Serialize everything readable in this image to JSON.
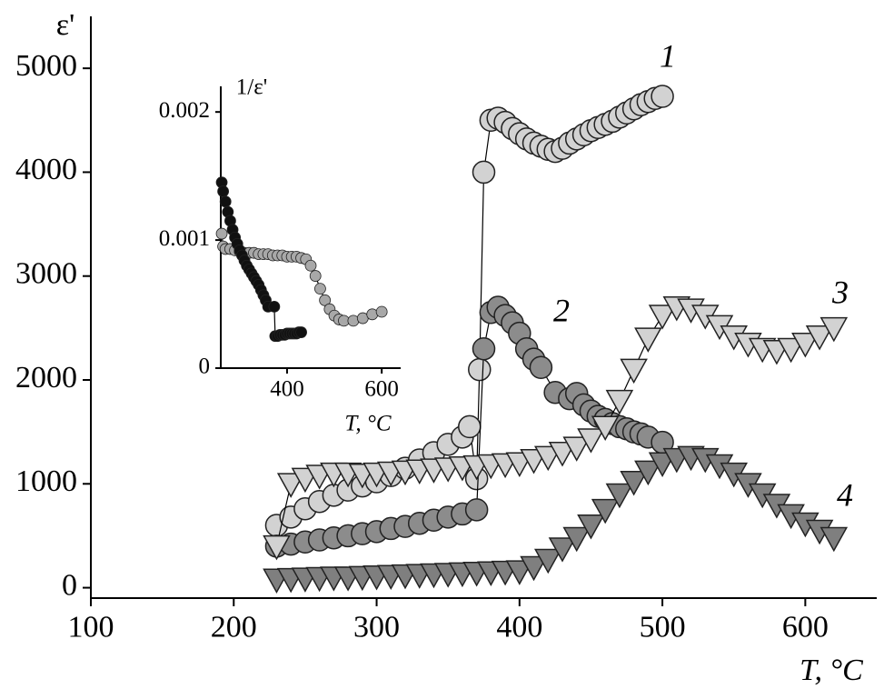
{
  "chart_data": [
    {
      "type": "scatter",
      "x_label": "T, °C",
      "y_label": "ε'",
      "xlim": [
        100,
        650
      ],
      "ylim": [
        -100,
        5500
      ],
      "xticks": [
        100,
        200,
        300,
        400,
        500,
        600
      ],
      "yticks": [
        0,
        1000,
        2000,
        3000,
        4000,
        5000
      ],
      "series": [
        {
          "name": "1",
          "marker": "circle",
          "color": "#d2d2d2",
          "x": [
            230,
            240,
            250,
            260,
            270,
            280,
            290,
            300,
            310,
            320,
            330,
            340,
            350,
            360,
            365,
            370,
            372,
            375,
            380,
            385,
            390,
            395,
            400,
            405,
            410,
            415,
            420,
            425,
            430,
            435,
            440,
            445,
            450,
            455,
            460,
            465,
            470,
            475,
            480,
            485,
            490,
            495,
            500
          ],
          "values": [
            600,
            680,
            760,
            830,
            890,
            940,
            980,
            1020,
            1080,
            1150,
            1230,
            1300,
            1380,
            1450,
            1550,
            1050,
            2100,
            4000,
            4500,
            4520,
            4480,
            4420,
            4370,
            4320,
            4280,
            4250,
            4220,
            4200,
            4230,
            4280,
            4320,
            4360,
            4400,
            4430,
            4460,
            4490,
            4530,
            4570,
            4610,
            4650,
            4680,
            4710,
            4730
          ]
        },
        {
          "name": "2",
          "marker": "circle",
          "color": "#8c8c8c",
          "x": [
            230,
            240,
            250,
            260,
            270,
            280,
            290,
            300,
            310,
            320,
            330,
            340,
            350,
            360,
            370,
            375,
            380,
            385,
            390,
            395,
            400,
            405,
            410,
            415,
            425,
            435,
            440,
            445,
            450,
            455,
            460,
            465,
            470,
            475,
            480,
            485,
            490,
            500
          ],
          "values": [
            400,
            420,
            440,
            460,
            480,
            500,
            520,
            540,
            570,
            590,
            620,
            650,
            680,
            710,
            750,
            2300,
            2650,
            2700,
            2620,
            2550,
            2450,
            2300,
            2200,
            2120,
            1880,
            1820,
            1870,
            1760,
            1700,
            1650,
            1620,
            1580,
            1550,
            1530,
            1500,
            1480,
            1450,
            1400
          ]
        },
        {
          "name": "3",
          "marker": "triangle",
          "color": "#d2d2d2",
          "x": [
            230,
            240,
            250,
            260,
            270,
            280,
            290,
            300,
            310,
            320,
            330,
            340,
            350,
            360,
            370,
            380,
            390,
            400,
            410,
            420,
            430,
            440,
            450,
            460,
            470,
            480,
            490,
            500,
            510,
            520,
            530,
            540,
            550,
            560,
            570,
            580,
            590,
            600,
            610,
            620
          ],
          "values": [
            400,
            1000,
            1050,
            1080,
            1100,
            1100,
            1090,
            1100,
            1110,
            1120,
            1130,
            1140,
            1150,
            1160,
            1170,
            1180,
            1190,
            1200,
            1230,
            1260,
            1300,
            1350,
            1430,
            1550,
            1800,
            2100,
            2400,
            2620,
            2700,
            2680,
            2620,
            2520,
            2420,
            2350,
            2300,
            2280,
            2300,
            2350,
            2420,
            2500
          ]
        },
        {
          "name": "4",
          "marker": "triangle",
          "color": "#7f7f7f",
          "x": [
            230,
            240,
            250,
            260,
            270,
            280,
            290,
            300,
            310,
            320,
            330,
            340,
            350,
            360,
            370,
            380,
            390,
            400,
            410,
            420,
            430,
            440,
            450,
            460,
            470,
            480,
            490,
            500,
            510,
            520,
            530,
            540,
            550,
            560,
            570,
            580,
            590,
            600,
            610,
            620
          ],
          "values": [
            80,
            85,
            90,
            95,
            100,
            100,
            105,
            110,
            115,
            120,
            125,
            130,
            135,
            140,
            145,
            150,
            155,
            160,
            200,
            270,
            380,
            480,
            600,
            750,
            900,
            1020,
            1120,
            1200,
            1240,
            1260,
            1240,
            1180,
            1100,
            1000,
            900,
            800,
            700,
            620,
            550,
            480
          ]
        }
      ]
    },
    {
      "type": "scatter",
      "x_label": "T, °C",
      "y_label": "1/ε'",
      "xlim": [
        260,
        640
      ],
      "ylim": [
        0,
        0.0022
      ],
      "xticks": [
        400,
        600
      ],
      "yticks": [
        0,
        0.001,
        0.002
      ],
      "series": [
        {
          "marker": "circle",
          "color": "#a8a8a8",
          "x": [
            262,
            265,
            270,
            280,
            290,
            300,
            310,
            320,
            330,
            340,
            350,
            360,
            370,
            380,
            390,
            400,
            410,
            420,
            430,
            440,
            450,
            460,
            470,
            480,
            490,
            500,
            510,
            520,
            540,
            560,
            580,
            600
          ],
          "values": [
            0.00105,
            0.00095,
            0.00093,
            0.00093,
            0.00092,
            0.00091,
            0.0009,
            0.0009,
            0.0009,
            0.00089,
            0.00089,
            0.00089,
            0.00088,
            0.00088,
            0.00088,
            0.00087,
            0.00087,
            0.00087,
            0.00086,
            0.00085,
            0.0008,
            0.00072,
            0.00062,
            0.00053,
            0.00046,
            0.00041,
            0.00038,
            0.00037,
            0.00037,
            0.00039,
            0.00042,
            0.00044
          ]
        },
        {
          "marker": "circle",
          "color": "#111111",
          "x": [
            262,
            265,
            270,
            275,
            280,
            285,
            290,
            295,
            300,
            305,
            310,
            315,
            320,
            325,
            330,
            335,
            340,
            345,
            350,
            355,
            360,
            373,
            375,
            380,
            385,
            390,
            395,
            400,
            405,
            410,
            415,
            420,
            425,
            430
          ],
          "values": [
            0.00145,
            0.00138,
            0.0013,
            0.00122,
            0.00115,
            0.00108,
            0.00102,
            0.00097,
            0.00092,
            0.00088,
            0.00084,
            0.0008,
            0.00077,
            0.00074,
            0.00071,
            0.00068,
            0.00065,
            0.00061,
            0.00057,
            0.00053,
            0.00048,
            0.00048,
            0.00025,
            0.00025,
            0.00026,
            0.00026,
            0.00026,
            0.00027,
            0.00027,
            0.00027,
            0.00027,
            0.00027,
            0.00028,
            0.00028
          ]
        }
      ]
    }
  ]
}
